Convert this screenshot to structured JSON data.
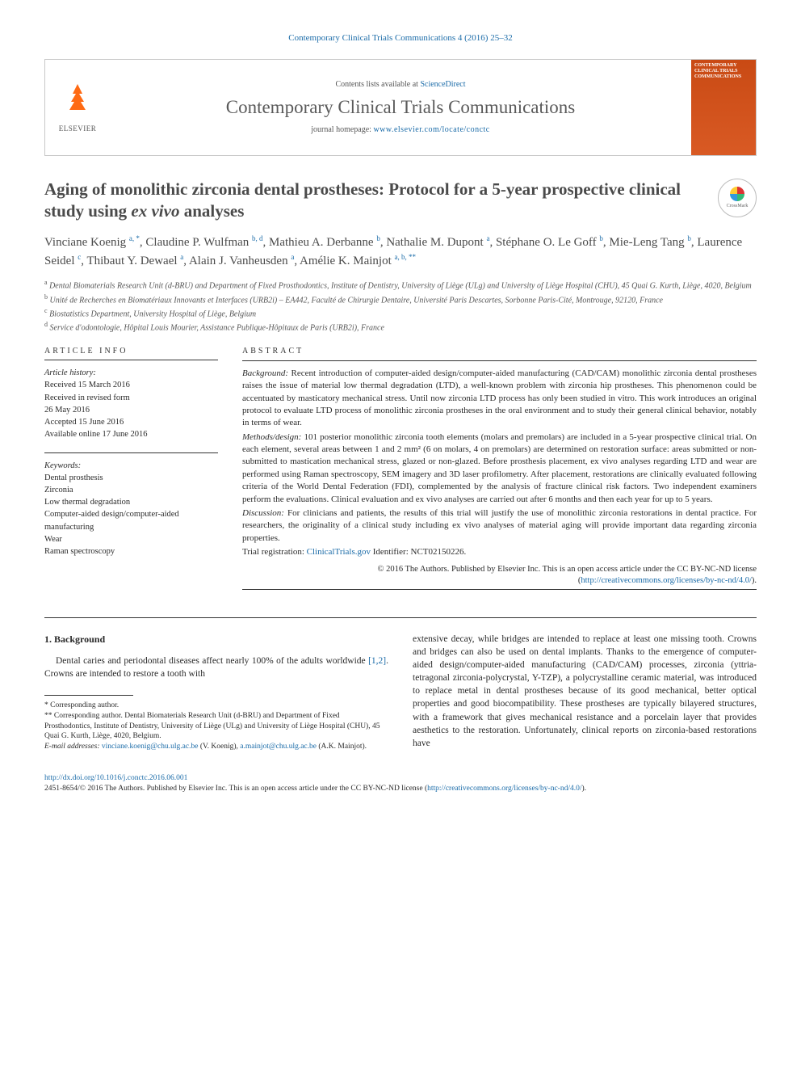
{
  "citation_header": "Contemporary Clinical Trials Communications 4 (2016) 25–32",
  "header": {
    "contents_prefix": "Contents lists available at ",
    "contents_link": "ScienceDirect",
    "journal": "Contemporary Clinical Trials Communications",
    "homepage_prefix": "journal homepage: ",
    "homepage_link": "www.elsevier.com/locate/conctc",
    "publisher": "ELSEVIER",
    "cover_text1": "CONTEMPORARY",
    "cover_text2": "CLINICAL TRIALS",
    "cover_text3": "COMMUNICATIONS"
  },
  "title_pre": "Aging of monolithic zirconia dental prostheses: Protocol for a 5-year prospective clinical study using ",
  "title_ital": "ex vivo",
  "title_post": " analyses",
  "crossmark": "CrossMark",
  "authors_html": "Vinciane Koenig <sup>a, *</sup>, Claudine P. Wulfman <sup>b, d</sup>, Mathieu A. Derbanne <sup>b</sup>, Nathalie M. Dupont <sup>a</sup>, Stéphane O. Le Goff <sup>b</sup>, Mie-Leng Tang <sup>b</sup>, Laurence Seidel <sup>c</sup>, Thibaut Y. Dewael <sup>a</sup>, Alain J. Vanheusden <sup>a</sup>, Amélie K. Mainjot <sup>a, b, **</sup>",
  "affiliations": [
    "a Dental Biomaterials Research Unit (d-BRU) and Department of Fixed Prosthodontics, Institute of Dentistry, University of Liège (ULg) and University of Liège Hospital (CHU), 45 Quai G. Kurth, Liège, 4020, Belgium",
    "b Unité de Recherches en Biomatériaux Innovants et Interfaces (URB2i) – EA442, Faculté de Chirurgie Dentaire, Université Paris Descartes, Sorbonne Paris-Cité, Montrouge, 92120, France",
    "c Biostatistics Department, University Hospital of Liège, Belgium",
    "d Service d'odontologie, Hôpital Louis Mourier, Assistance Publique-Hôpitaux de Paris (URB2i), France"
  ],
  "article_info": {
    "head": "ARTICLE INFO",
    "history_label": "Article history:",
    "history": [
      "Received 15 March 2016",
      "Received in revised form",
      "26 May 2016",
      "Accepted 15 June 2016",
      "Available online 17 June 2016"
    ],
    "kw_label": "Keywords:",
    "keywords": [
      "Dental prosthesis",
      "Zirconia",
      "Low thermal degradation",
      "Computer-aided design/computer-aided manufacturing",
      "Wear",
      "Raman spectroscopy"
    ]
  },
  "abstract": {
    "head": "ABSTRACT",
    "background_lbl": "Background:",
    "background": " Recent introduction of computer-aided design/computer-aided manufacturing (CAD/CAM) monolithic zirconia dental prostheses raises the issue of material low thermal degradation (LTD), a well-known problem with zirconia hip prostheses. This phenomenon could be accentuated by masticatory mechanical stress. Until now zirconia LTD process has only been studied in vitro. This work introduces an original protocol to evaluate LTD process of monolithic zirconia prostheses in the oral environment and to study their general clinical behavior, notably in terms of wear.",
    "methods_lbl": "Methods/design:",
    "methods": " 101 posterior monolithic zirconia tooth elements (molars and premolars) are included in a 5-year prospective clinical trial. On each element, several areas between 1 and 2 mm² (6 on molars, 4 on premolars) are determined on restoration surface: areas submitted or non-submitted to mastication mechanical stress, glazed or non-glazed. Before prosthesis placement, ex vivo analyses regarding LTD and wear are performed using Raman spectroscopy, SEM imagery and 3D laser profilometry. After placement, restorations are clinically evaluated following criteria of the World Dental Federation (FDI), complemented by the analysis of fracture clinical risk factors. Two independent examiners perform the evaluations. Clinical evaluation and ex vivo analyses are carried out after 6 months and then each year for up to 5 years.",
    "discussion_lbl": "Discussion:",
    "discussion": " For clinicians and patients, the results of this trial will justify the use of monolithic zirconia restorations in dental practice. For researchers, the originality of a clinical study including ex vivo analyses of material aging will provide important data regarding zirconia properties.",
    "trial_lbl": "Trial registration: ",
    "trial_link": "ClinicalTrials.gov",
    "trial_post": " Identifier: NCT02150226.",
    "copyright": "© 2016 The Authors. Published by Elsevier Inc. This is an open access article under the CC BY-NC-ND license (",
    "license_link": "http://creativecommons.org/licenses/by-nc-nd/4.0/",
    "copyright_close": ")."
  },
  "body": {
    "sec_head": "1. Background",
    "left_p": "Dental caries and periodontal diseases affect nearly 100% of the adults worldwide ",
    "left_cite": "[1,2]",
    "left_p_post": ". Crowns are intended to restore a tooth with",
    "right_p": "extensive decay, while bridges are intended to replace at least one missing tooth. Crowns and bridges can also be used on dental implants. Thanks to the emergence of computer-aided design/computer-aided manufacturing (CAD/CAM) processes, zirconia (yttria-tetragonal zirconia-polycrystal, Y-TZP), a polycrystalline ceramic material, was introduced to replace metal in dental prostheses because of its good mechanical, better optical properties and good biocompatibility. These prostheses are typically bilayered structures, with a framework that gives mechanical resistance and a porcelain layer that provides aesthetics to the restoration. Unfortunately, clinical reports on zirconia-based restorations have"
  },
  "footnotes": {
    "star1": "* Corresponding author.",
    "star2": "** Corresponding author. Dental Biomaterials Research Unit (d-BRU) and Department of Fixed Prosthodontics, Institute of Dentistry, University of Liège (ULg) and University of Liège Hospital (CHU), 45 Quai G. Kurth, Liège, 4020, Belgium.",
    "email_lbl": "E-mail addresses: ",
    "email1": "vinciane.koenig@chu.ulg.ac.be",
    "email1_post": " (V. Koenig), ",
    "email2": "a.mainjot@chu.ulg.ac.be",
    "email2_post": " (A.K. Mainjot)."
  },
  "footer": {
    "doi": "http://dx.doi.org/10.1016/j.conctc.2016.06.001",
    "line2_pre": "2451-8654/© 2016 The Authors. Published by Elsevier Inc. This is an open access article under the CC BY-NC-ND license (",
    "line2_link": "http://creativecommons.org/licenses/by-nc-nd/4.0/",
    "line2_post": ")."
  },
  "colors": {
    "link": "#1a6ba8",
    "elsevier_orange": "#ff6a13",
    "text": "#2a2a2a",
    "rule": "#333333"
  }
}
